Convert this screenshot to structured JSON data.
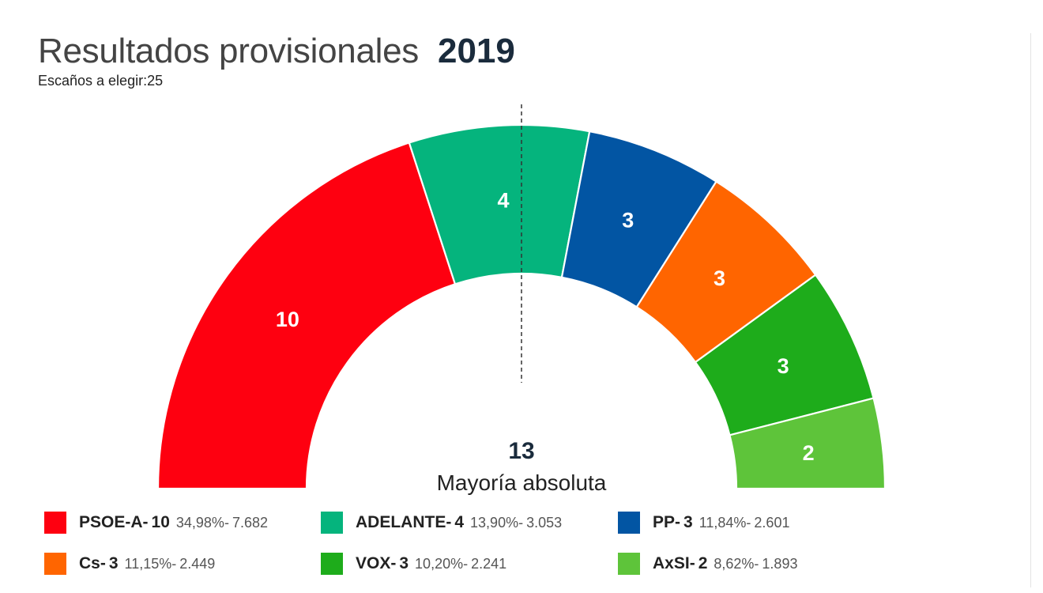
{
  "header": {
    "title": "Resultados provisionales",
    "year": "2019",
    "subtitle": "Escaños a elegir:25"
  },
  "chart_data": {
    "type": "pie",
    "shape": "semicircle-parliament",
    "title": "Resultados provisionales 2019",
    "total_seats": 25,
    "majority": {
      "value": "13",
      "label": "Mayoría absoluta"
    },
    "separator": "- ",
    "categories": [
      "PSOE-A",
      "ADELANTE",
      "PP",
      "Cs",
      "VOX",
      "AxSI"
    ],
    "values": [
      10,
      4,
      3,
      3,
      3,
      2
    ],
    "parties": [
      {
        "name": "PSOE-A",
        "seats": 10,
        "pct": "34,98%",
        "votes": "7.682",
        "color": "#fe0010"
      },
      {
        "name": "ADELANTE",
        "seats": 4,
        "pct": "13,90%",
        "votes": "3.053",
        "color": "#05b47d"
      },
      {
        "name": "PP",
        "seats": 3,
        "pct": "11,84%",
        "votes": "2.601",
        "color": "#0255a3"
      },
      {
        "name": "Cs",
        "seats": 3,
        "pct": "11,15%",
        "votes": "2.449",
        "color": "#ff6500"
      },
      {
        "name": "VOX",
        "seats": 3,
        "pct": "10,20%",
        "votes": "2.241",
        "color": "#1eac1b"
      },
      {
        "name": "AxSI",
        "seats": 2,
        "pct": "8,62%",
        "votes": "1.893",
        "color": "#5ec43a"
      }
    ]
  }
}
